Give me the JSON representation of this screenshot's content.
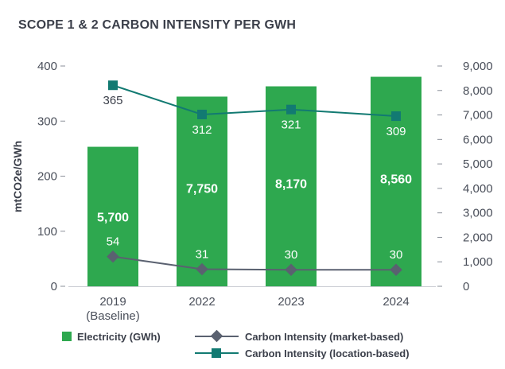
{
  "chart_data": {
    "type": "bar",
    "title": "SCOPE 1 & 2 CARBON INTENSITY PER GWH",
    "xlabel": "",
    "ylabel": "mtCO2e/GWh",
    "categories": [
      "2019 (Baseline)",
      "2022",
      "2023",
      "2024"
    ],
    "category_lines": [
      [
        "2019",
        "(Baseline)"
      ],
      [
        "2022"
      ],
      [
        "2023"
      ],
      [
        "2024"
      ]
    ],
    "ylim": [
      0,
      400
    ],
    "y_ticks": [
      0,
      100,
      200,
      300,
      400
    ],
    "y2lim": [
      0,
      9000
    ],
    "y2_ticks": [
      0,
      1000,
      2000,
      3000,
      4000,
      5000,
      6000,
      7000,
      8000,
      9000
    ],
    "y2_tick_labels": [
      "0",
      "1,000",
      "2,000",
      "3,000",
      "4,000",
      "5,000",
      "6,000",
      "7,000",
      "8,000",
      "9,000"
    ],
    "grid": false,
    "legend_placement": "bottom",
    "series": [
      {
        "name": "Electricity (GWh)",
        "kind": "bar",
        "axis": "right",
        "values": [
          5700,
          7750,
          8170,
          8560
        ],
        "labels": [
          "5,700",
          "7,750",
          "8,170",
          "8,560"
        ],
        "color": "#2ea84f"
      },
      {
        "name": "Carbon Intensity (market-based)",
        "kind": "line",
        "axis": "left",
        "marker": "diamond",
        "values": [
          54,
          31,
          30,
          30
        ],
        "labels": [
          "54",
          "31",
          "30",
          "30"
        ],
        "color": "#5a6170"
      },
      {
        "name": "Carbon Intensity (location-based)",
        "kind": "line",
        "axis": "left",
        "marker": "square",
        "values": [
          365,
          312,
          321,
          309
        ],
        "labels": [
          "365",
          "312",
          "321",
          "309"
        ],
        "color": "#127a72"
      }
    ]
  }
}
